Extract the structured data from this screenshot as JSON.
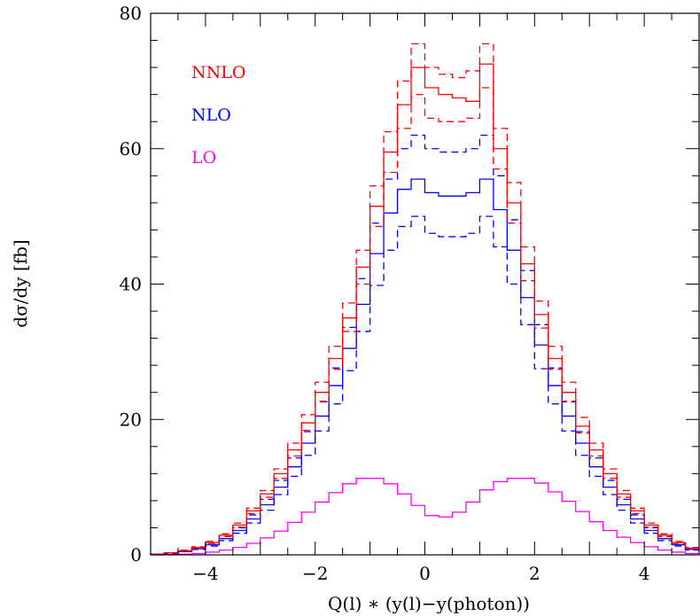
{
  "chart_data": {
    "type": "line",
    "xlabel": "Q(l) ∗ (y(l)−y(photon))",
    "ylabel": "dσ/dy [fb]",
    "xlim": [
      -5,
      5
    ],
    "ylim": [
      0,
      80
    ],
    "x_ticks": [
      "−4",
      "−2",
      "0",
      "2",
      "4"
    ],
    "y_ticks": [
      "0",
      "20",
      "40",
      "60",
      "80"
    ],
    "legend_position": "top-left",
    "bin_edges": [
      -5.0,
      -4.75,
      -4.5,
      -4.25,
      -4.0,
      -3.75,
      -3.5,
      -3.25,
      -3.0,
      -2.75,
      -2.5,
      -2.25,
      -2.0,
      -1.75,
      -1.5,
      -1.25,
      -1.0,
      -0.75,
      -0.5,
      -0.25,
      0.0,
      0.25,
      0.5,
      0.75,
      1.0,
      1.25,
      1.5,
      1.75,
      2.0,
      2.25,
      2.5,
      2.75,
      3.0,
      3.25,
      3.5,
      3.75,
      4.0,
      4.25,
      4.5,
      4.75,
      5.0
    ],
    "series": [
      {
        "name": "NNLO",
        "color": "#ff0000",
        "style": "solid",
        "values": [
          0.1,
          0.3,
          0.6,
          1.1,
          1.8,
          2.9,
          4.4,
          6.5,
          9.0,
          12.0,
          15.5,
          19.5,
          24.0,
          29.0,
          35.0,
          42.5,
          51.5,
          59.5,
          66.5,
          72.0,
          69.0,
          68.0,
          67.5,
          67.0,
          72.5,
          60.0,
          52.0,
          43.0,
          35.5,
          29.0,
          24.0,
          19.0,
          15.5,
          12.0,
          9.0,
          6.5,
          4.4,
          2.9,
          1.8,
          1.0
        ]
      },
      {
        "name": "NNLO scale upper",
        "color": "#ff0000",
        "style": "dashed",
        "values": [
          0.1,
          0.3,
          0.7,
          1.2,
          2.0,
          3.1,
          4.7,
          6.9,
          9.5,
          12.7,
          16.5,
          20.7,
          25.5,
          30.8,
          37.2,
          45.0,
          54.5,
          62.5,
          70.0,
          75.5,
          72.0,
          71.0,
          70.5,
          71.5,
          75.5,
          63.0,
          55.0,
          45.5,
          37.5,
          30.8,
          25.5,
          20.3,
          16.5,
          12.7,
          9.5,
          6.9,
          4.7,
          3.1,
          2.0,
          1.1
        ]
      },
      {
        "name": "NNLO scale lower",
        "color": "#ff0000",
        "style": "dashed",
        "values": [
          0.1,
          0.3,
          0.6,
          1.0,
          1.7,
          2.7,
          4.1,
          6.1,
          8.5,
          11.3,
          14.6,
          18.4,
          22.7,
          27.4,
          33.0,
          40.0,
          48.5,
          56.5,
          63.0,
          68.0,
          64.5,
          64.0,
          64.0,
          64.5,
          69.0,
          57.0,
          49.0,
          40.5,
          33.5,
          27.4,
          22.7,
          18.0,
          14.6,
          11.3,
          8.5,
          6.1,
          4.1,
          2.7,
          1.7,
          0.9
        ]
      },
      {
        "name": "NLO",
        "color": "#0000ff",
        "style": "solid",
        "values": [
          0.1,
          0.3,
          0.5,
          0.9,
          1.5,
          2.4,
          3.6,
          5.3,
          7.4,
          10.0,
          13.0,
          16.5,
          20.5,
          25.0,
          30.5,
          37.0,
          44.5,
          50.5,
          54.0,
          55.5,
          53.5,
          53.0,
          53.0,
          53.5,
          55.5,
          51.0,
          45.0,
          38.0,
          31.0,
          25.0,
          20.5,
          16.5,
          13.0,
          10.0,
          7.4,
          5.3,
          3.6,
          2.4,
          1.5,
          0.8
        ]
      },
      {
        "name": "NLO scale upper",
        "color": "#0000ff",
        "style": "dashed",
        "values": [
          0.1,
          0.3,
          0.6,
          1.0,
          1.7,
          2.7,
          4.0,
          5.9,
          8.2,
          11.0,
          14.3,
          18.2,
          22.6,
          27.6,
          33.6,
          40.8,
          49.0,
          55.5,
          60.0,
          62.0,
          60.0,
          59.5,
          59.5,
          60.0,
          62.0,
          56.0,
          49.5,
          42.0,
          34.0,
          27.6,
          22.6,
          18.2,
          14.3,
          11.0,
          8.2,
          5.9,
          4.0,
          2.7,
          1.7,
          0.9
        ]
      },
      {
        "name": "NLO scale lower",
        "color": "#0000ff",
        "style": "dashed",
        "values": [
          0.1,
          0.2,
          0.5,
          0.8,
          1.3,
          2.1,
          3.2,
          4.7,
          6.6,
          8.9,
          11.6,
          14.7,
          18.3,
          22.3,
          27.2,
          33.0,
          39.8,
          45.0,
          48.5,
          50.0,
          47.5,
          47.0,
          47.0,
          47.5,
          50.0,
          45.5,
          40.0,
          34.0,
          27.5,
          22.3,
          18.3,
          14.7,
          11.6,
          8.9,
          6.6,
          4.7,
          3.2,
          2.1,
          1.3,
          0.7
        ]
      },
      {
        "name": "LO",
        "color": "#ff00ff",
        "style": "solid",
        "values": [
          0.0,
          0.05,
          0.1,
          0.2,
          0.4,
          0.7,
          1.1,
          1.7,
          2.5,
          3.5,
          4.8,
          6.3,
          7.8,
          9.2,
          10.5,
          11.3,
          11.3,
          10.5,
          9.0,
          7.3,
          5.8,
          5.6,
          6.3,
          7.8,
          9.6,
          10.8,
          11.3,
          11.3,
          10.6,
          9.3,
          7.9,
          6.4,
          4.9,
          3.6,
          2.6,
          1.8,
          1.2,
          0.7,
          0.4,
          0.2
        ]
      }
    ],
    "legend": [
      {
        "label": "NNLO",
        "color": "#ff0000"
      },
      {
        "label": "NLO",
        "color": "#0000ff"
      },
      {
        "label": "LO",
        "color": "#ff00ff"
      }
    ]
  }
}
